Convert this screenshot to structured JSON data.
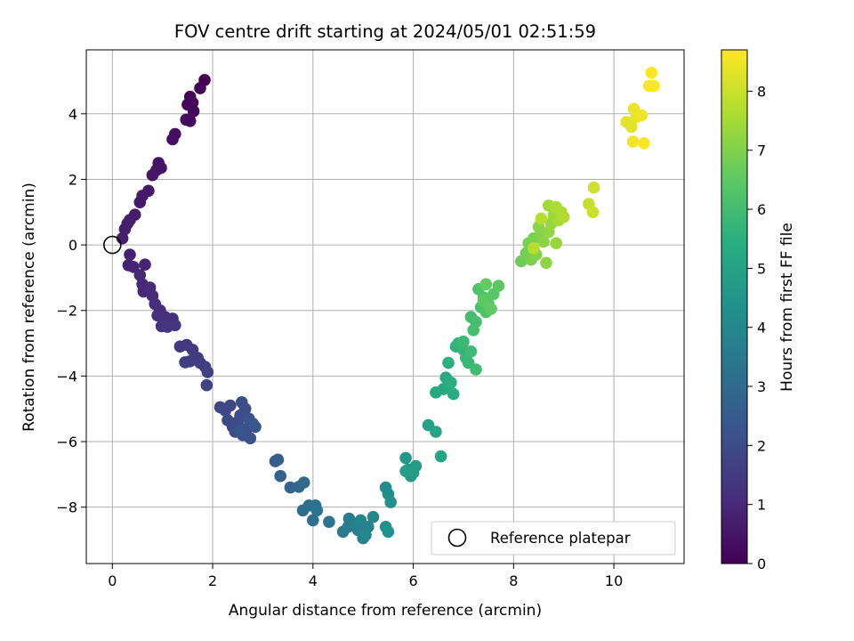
{
  "chart_data": {
    "type": "scatter",
    "title": "FOV centre drift starting at 2024/05/01 02:51:59",
    "xlabel": "Angular distance from reference (arcmin)",
    "ylabel": "Rotation from reference (arcmin)",
    "xlim": [
      -0.52,
      11.4
    ],
    "ylim": [
      -9.72,
      5.95
    ],
    "xticks": [
      0,
      2,
      4,
      6,
      8,
      10
    ],
    "yticks": [
      -8,
      -6,
      -4,
      -2,
      0,
      2,
      4
    ],
    "grid": true,
    "colorbar": {
      "label": "Hours from first FF file",
      "range": [
        0,
        8.7
      ],
      "ticks": [
        0,
        1,
        2,
        3,
        4,
        5,
        6,
        7,
        8
      ],
      "colormap": "viridis"
    },
    "legend": {
      "position": "lower-right",
      "entries": [
        {
          "label": "Reference platepar",
          "marker": "open-circle"
        }
      ]
    },
    "reference": {
      "x": 0,
      "y": 0
    },
    "points": [
      [
        1.84,
        5.03,
        0.0
      ],
      [
        1.75,
        4.78,
        0.05
      ],
      [
        1.55,
        4.52,
        0.1
      ],
      [
        1.6,
        4.34,
        0.14
      ],
      [
        1.5,
        4.28,
        0.17
      ],
      [
        1.62,
        4.08,
        0.2
      ],
      [
        1.47,
        3.82,
        0.25
      ],
      [
        1.55,
        3.78,
        0.28
      ],
      [
        1.25,
        3.38,
        0.33
      ],
      [
        1.2,
        3.22,
        0.36
      ],
      [
        0.97,
        2.35,
        0.45
      ],
      [
        0.92,
        2.5,
        0.47
      ],
      [
        0.88,
        2.28,
        0.49
      ],
      [
        0.8,
        2.13,
        0.52
      ],
      [
        0.72,
        1.65,
        0.56
      ],
      [
        0.6,
        1.5,
        0.6
      ],
      [
        0.55,
        1.3,
        0.63
      ],
      [
        0.45,
        0.92,
        0.67
      ],
      [
        0.35,
        0.76,
        0.7
      ],
      [
        0.3,
        0.65,
        0.72
      ],
      [
        0.25,
        0.48,
        0.75
      ],
      [
        0.2,
        0.2,
        0.77
      ],
      [
        0.35,
        -0.3,
        0.82
      ],
      [
        0.32,
        -0.62,
        0.85
      ],
      [
        0.42,
        -0.67,
        0.87
      ],
      [
        0.65,
        -0.6,
        0.9
      ],
      [
        0.55,
        -0.92,
        0.93
      ],
      [
        0.6,
        -1.2,
        0.96
      ],
      [
        0.62,
        -1.42,
        0.99
      ],
      [
        0.75,
        -1.3,
        1.02
      ],
      [
        0.8,
        -1.55,
        1.05
      ],
      [
        0.85,
        -1.8,
        1.08
      ],
      [
        0.95,
        -2.0,
        1.12
      ],
      [
        0.9,
        -2.15,
        1.15
      ],
      [
        1.05,
        -2.2,
        1.18
      ],
      [
        1.15,
        -2.3,
        1.21
      ],
      [
        1.2,
        -2.25,
        1.24
      ],
      [
        0.98,
        -2.48,
        1.27
      ],
      [
        1.1,
        -2.5,
        1.3
      ],
      [
        1.25,
        -2.45,
        1.33
      ],
      [
        1.35,
        -3.1,
        1.4
      ],
      [
        1.48,
        -3.05,
        1.43
      ],
      [
        1.6,
        -3.2,
        1.46
      ],
      [
        1.7,
        -3.45,
        1.5
      ],
      [
        1.45,
        -3.58,
        1.53
      ],
      [
        1.55,
        -3.55,
        1.56
      ],
      [
        1.75,
        -3.6,
        1.6
      ],
      [
        1.85,
        -3.72,
        1.63
      ],
      [
        1.9,
        -3.88,
        1.66
      ],
      [
        1.88,
        -4.28,
        1.7
      ],
      [
        2.15,
        -4.95,
        1.8
      ],
      [
        2.25,
        -5.05,
        1.83
      ],
      [
        2.35,
        -4.9,
        1.86
      ],
      [
        2.3,
        -5.35,
        1.9
      ],
      [
        2.4,
        -5.55,
        1.93
      ],
      [
        2.45,
        -5.7,
        1.96
      ],
      [
        2.5,
        -5.4,
        2.0
      ],
      [
        2.55,
        -5.2,
        2.03
      ],
      [
        2.58,
        -4.8,
        2.06
      ],
      [
        2.65,
        -5.0,
        2.1
      ],
      [
        2.6,
        -5.8,
        2.13
      ],
      [
        2.68,
        -5.6,
        2.16
      ],
      [
        2.75,
        -5.9,
        2.2
      ],
      [
        2.8,
        -5.45,
        2.23
      ],
      [
        2.72,
        -5.3,
        2.26
      ],
      [
        2.55,
        -5.65,
        2.3
      ],
      [
        2.85,
        -5.55,
        2.33
      ],
      [
        3.25,
        -6.6,
        2.55
      ],
      [
        3.3,
        -6.55,
        2.6
      ],
      [
        3.35,
        -7.05,
        2.68
      ],
      [
        3.55,
        -7.4,
        2.8
      ],
      [
        3.72,
        -7.38,
        2.9
      ],
      [
        3.82,
        -7.25,
        2.98
      ],
      [
        3.8,
        -8.1,
        3.06
      ],
      [
        3.92,
        -7.95,
        3.12
      ],
      [
        4.0,
        -8.4,
        3.2
      ],
      [
        4.05,
        -7.95,
        3.26
      ],
      [
        4.08,
        -8.1,
        3.3
      ],
      [
        4.32,
        -8.45,
        3.4
      ],
      [
        4.6,
        -8.75,
        3.55
      ],
      [
        4.7,
        -8.6,
        3.6
      ],
      [
        4.72,
        -8.35,
        3.65
      ],
      [
        4.85,
        -8.5,
        3.7
      ],
      [
        4.9,
        -8.7,
        3.75
      ],
      [
        5.0,
        -8.95,
        3.8
      ],
      [
        5.1,
        -8.6,
        3.85
      ],
      [
        4.95,
        -8.4,
        3.9
      ],
      [
        5.2,
        -8.3,
        3.95
      ],
      [
        5.05,
        -8.85,
        4.0
      ],
      [
        5.45,
        -7.4,
        4.2
      ],
      [
        5.5,
        -7.6,
        4.25
      ],
      [
        5.55,
        -7.85,
        4.3
      ],
      [
        5.45,
        -8.6,
        4.35
      ],
      [
        5.5,
        -8.75,
        4.4
      ],
      [
        5.85,
        -6.5,
        4.6
      ],
      [
        5.9,
        -6.85,
        4.65
      ],
      [
        5.95,
        -7.05,
        4.7
      ],
      [
        6.05,
        -6.75,
        4.75
      ],
      [
        6.0,
        -6.95,
        4.8
      ],
      [
        5.85,
        -6.9,
        4.85
      ],
      [
        6.3,
        -5.5,
        5.0
      ],
      [
        6.45,
        -5.7,
        5.05
      ],
      [
        6.55,
        -6.45,
        5.1
      ],
      [
        6.45,
        -4.5,
        5.2
      ],
      [
        6.6,
        -4.4,
        5.25
      ],
      [
        6.65,
        -4.05,
        5.3
      ],
      [
        6.7,
        -4.3,
        5.35
      ],
      [
        6.8,
        -4.55,
        5.4
      ],
      [
        6.75,
        -4.2,
        5.45
      ],
      [
        6.7,
        -3.6,
        5.5
      ],
      [
        6.85,
        -3.1,
        5.6
      ],
      [
        6.9,
        -3.0,
        5.65
      ],
      [
        7.0,
        -3.2,
        5.7
      ],
      [
        7.05,
        -3.45,
        5.75
      ],
      [
        7.1,
        -3.6,
        5.8
      ],
      [
        7.0,
        -2.95,
        5.85
      ],
      [
        7.15,
        -3.25,
        5.9
      ],
      [
        7.25,
        -3.8,
        5.95
      ],
      [
        7.15,
        -2.2,
        6.0
      ],
      [
        7.25,
        -2.35,
        6.05
      ],
      [
        7.2,
        -2.6,
        6.1
      ],
      [
        7.35,
        -1.9,
        6.15
      ],
      [
        7.4,
        -1.6,
        6.2
      ],
      [
        7.3,
        -1.35,
        6.25
      ],
      [
        7.45,
        -2.05,
        6.3
      ],
      [
        7.5,
        -1.8,
        6.35
      ],
      [
        7.6,
        -1.5,
        6.4
      ],
      [
        7.7,
        -1.25,
        6.45
      ],
      [
        7.4,
        -1.7,
        6.5
      ],
      [
        7.55,
        -1.95,
        6.55
      ],
      [
        7.45,
        -1.2,
        6.6
      ],
      [
        8.15,
        -0.5,
        6.75
      ],
      [
        8.25,
        -0.25,
        6.8
      ],
      [
        8.3,
        0.05,
        6.85
      ],
      [
        8.4,
        0.2,
        6.9
      ],
      [
        8.35,
        -0.45,
        6.95
      ],
      [
        8.45,
        -0.3,
        7.0
      ],
      [
        8.55,
        0.35,
        7.05
      ],
      [
        8.5,
        0.55,
        7.1
      ],
      [
        8.6,
        0.1,
        7.15
      ],
      [
        8.65,
        -0.55,
        7.2
      ],
      [
        8.7,
        0.4,
        7.25
      ],
      [
        8.75,
        0.65,
        7.3
      ],
      [
        8.85,
        0.05,
        7.35
      ],
      [
        8.8,
        0.9,
        7.4
      ],
      [
        8.7,
        1.2,
        7.45
      ],
      [
        8.9,
        0.75,
        7.5
      ],
      [
        8.95,
        1.0,
        7.55
      ],
      [
        8.85,
        1.15,
        7.6
      ],
      [
        9.0,
        0.85,
        7.65
      ],
      [
        8.55,
        0.8,
        7.7
      ],
      [
        8.4,
        -0.1,
        7.75
      ],
      [
        9.5,
        1.25,
        7.95
      ],
      [
        9.58,
        1.0,
        8.0
      ],
      [
        9.6,
        1.75,
        8.05
      ],
      [
        10.25,
        3.75,
        8.3
      ],
      [
        10.35,
        3.6,
        8.35
      ],
      [
        10.45,
        3.9,
        8.4
      ],
      [
        10.4,
        4.15,
        8.45
      ],
      [
        10.55,
        3.95,
        8.5
      ],
      [
        10.38,
        3.15,
        8.55
      ],
      [
        10.6,
        3.1,
        8.6
      ],
      [
        10.7,
        4.85,
        8.65
      ],
      [
        10.8,
        4.85,
        8.68
      ],
      [
        10.75,
        5.25,
        8.7
      ]
    ]
  }
}
